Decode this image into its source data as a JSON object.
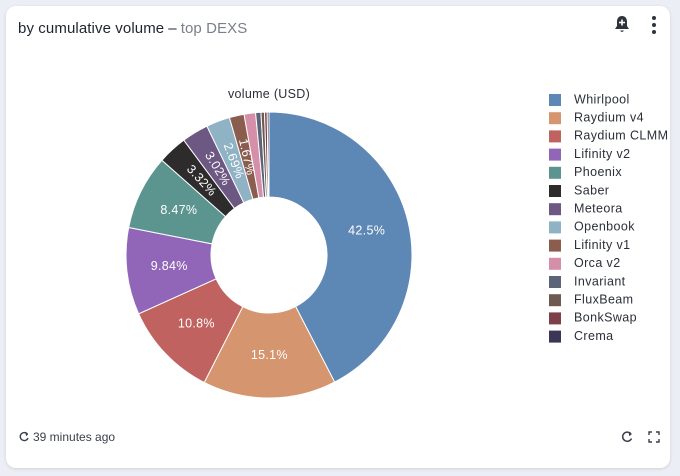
{
  "card": {
    "title": "by cumulative volume",
    "separator": "–",
    "subtitle": "top DEXS",
    "updated": "39 minutes ago"
  },
  "icons": {
    "alert": "bell-plus-icon",
    "menu": "kebab-menu-icon",
    "refresh": "refresh-icon",
    "expand": "expand-icon",
    "updated": "sync-icon"
  },
  "chart_data": {
    "type": "pie",
    "donut": true,
    "title": "volume (USD)",
    "legend_position": "right",
    "slices": [
      {
        "label": "Whirlpool",
        "value": 42.5,
        "display": "42.5%",
        "color": "#5d87b4"
      },
      {
        "label": "Raydium v4",
        "value": 15.1,
        "display": "15.1%",
        "color": "#d4956f"
      },
      {
        "label": "Raydium CLMM",
        "value": 10.8,
        "display": "10.8%",
        "color": "#c0625f"
      },
      {
        "label": "Lifinity v2",
        "value": 9.84,
        "display": "9.84%",
        "color": "#9166b8"
      },
      {
        "label": "Phoenix",
        "value": 8.47,
        "display": "8.47%",
        "color": "#5c9590"
      },
      {
        "label": "Saber",
        "value": 3.32,
        "display": "3.32%",
        "color": "#2e2b2c"
      },
      {
        "label": "Meteora",
        "value": 3.02,
        "display": "3.02%",
        "color": "#6d5783"
      },
      {
        "label": "Openbook",
        "value": 2.69,
        "display": "2.69%",
        "color": "#8fb2c4"
      },
      {
        "label": "Lifinity v1",
        "value": 1.67,
        "display": "1.67%",
        "color": "#8a5d4f"
      },
      {
        "label": "Orca v2",
        "value": 1.3,
        "display": "",
        "color": "#d68fa8"
      },
      {
        "label": "Invariant",
        "value": 0.6,
        "display": "",
        "color": "#5d6478"
      },
      {
        "label": "FluxBeam",
        "value": 0.4,
        "display": "",
        "color": "#6f5a52"
      },
      {
        "label": "BonkSwap",
        "value": 0.3,
        "display": "",
        "color": "#7d3f4a"
      },
      {
        "label": "Crema",
        "value": 0.2,
        "display": "",
        "color": "#3c3556"
      }
    ]
  }
}
